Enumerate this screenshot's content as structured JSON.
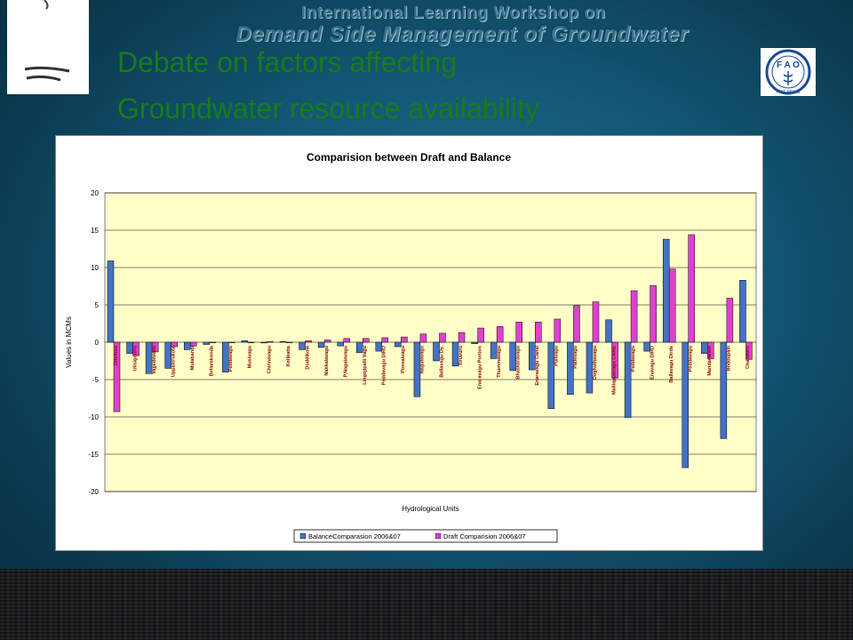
{
  "header": {
    "workshop_line1": "International Learning Workshop on",
    "workshop_line2": "Demand Side Management of Groundwater",
    "title_line1": "Debate on factors affecting",
    "title_line2": "Groundwater resource availability",
    "fao_label": "FIAT PANIS"
  },
  "colors": {
    "balance": "#4472c4",
    "draft": "#e040d0",
    "plot_bg": "#ffffc8",
    "title_green": "#1a7a1a"
  },
  "chart_data": {
    "type": "bar",
    "title": "Comparision between Draft and Balance",
    "xlabel": "Hydrological Units",
    "ylabel": "Values in MCMs",
    "ylim": [
      -20,
      20
    ],
    "yticks": [
      20,
      15,
      10,
      5,
      0,
      -5,
      -10,
      -15,
      -20
    ],
    "grid": true,
    "legend_position": "bottom",
    "categories": [
      "Dinchou",
      "Ulisigoleru",
      "Vajjedevedu",
      "Uppalerukota",
      "Mulabandi",
      "Bellamkonda",
      "Peddavagu",
      "Musivagu",
      "Chinnavagu",
      "Kotikatta",
      "Doddikola",
      "Nakkalavagu",
      "P.Nagalavagu",
      "Lingojipalli Vagu",
      "Peddavagu DIRD",
      "Poosaivagu",
      "Nagulavagu",
      "Ballavagu Dy.",
      "Tiruvuru",
      "Enaravagu Portion",
      "Thummavagu",
      "Bhaskaravagu",
      "Enaravagu Canal",
      "Pulivagu",
      "Pallevagu",
      "Doghsthavagu",
      "Malliappavagu CARE",
      "Peddavagu",
      "Enavagu DIRD",
      "Ballavagu Dirds",
      "Peddavagu",
      "Mandavaram",
      "Boddupalli",
      "Chanduru"
    ],
    "series": [
      {
        "name": "BalanceComparasion 2006&07",
        "values": [
          10.9,
          -1.5,
          -4.2,
          -3.5,
          -1.0,
          -0.3,
          -4.0,
          0.2,
          -0.1,
          0.1,
          -1.0,
          -0.7,
          -0.5,
          -1.4,
          -1.2,
          -0.6,
          -7.3,
          -2.5,
          -3.2,
          -0.2,
          -2.2,
          -3.8,
          -3.7,
          -8.9,
          -7.0,
          -6.8,
          3.0,
          -10.1,
          -1.2,
          13.8,
          -16.8,
          -1.5,
          -12.9,
          8.3
        ]
      },
      {
        "name": "Draft Comparision 2006&07",
        "values": [
          -9.3,
          -1.8,
          -1.3,
          -0.6,
          -0.5,
          0.0,
          0.0,
          0.0,
          0.1,
          0.0,
          0.2,
          0.3,
          0.5,
          0.5,
          0.6,
          0.7,
          1.1,
          1.2,
          1.3,
          1.9,
          2.1,
          2.7,
          2.7,
          3.1,
          4.9,
          5.4,
          -4.8,
          6.9,
          7.6,
          9.8,
          14.4,
          -2.2,
          5.9,
          -2.3
        ]
      }
    ]
  }
}
